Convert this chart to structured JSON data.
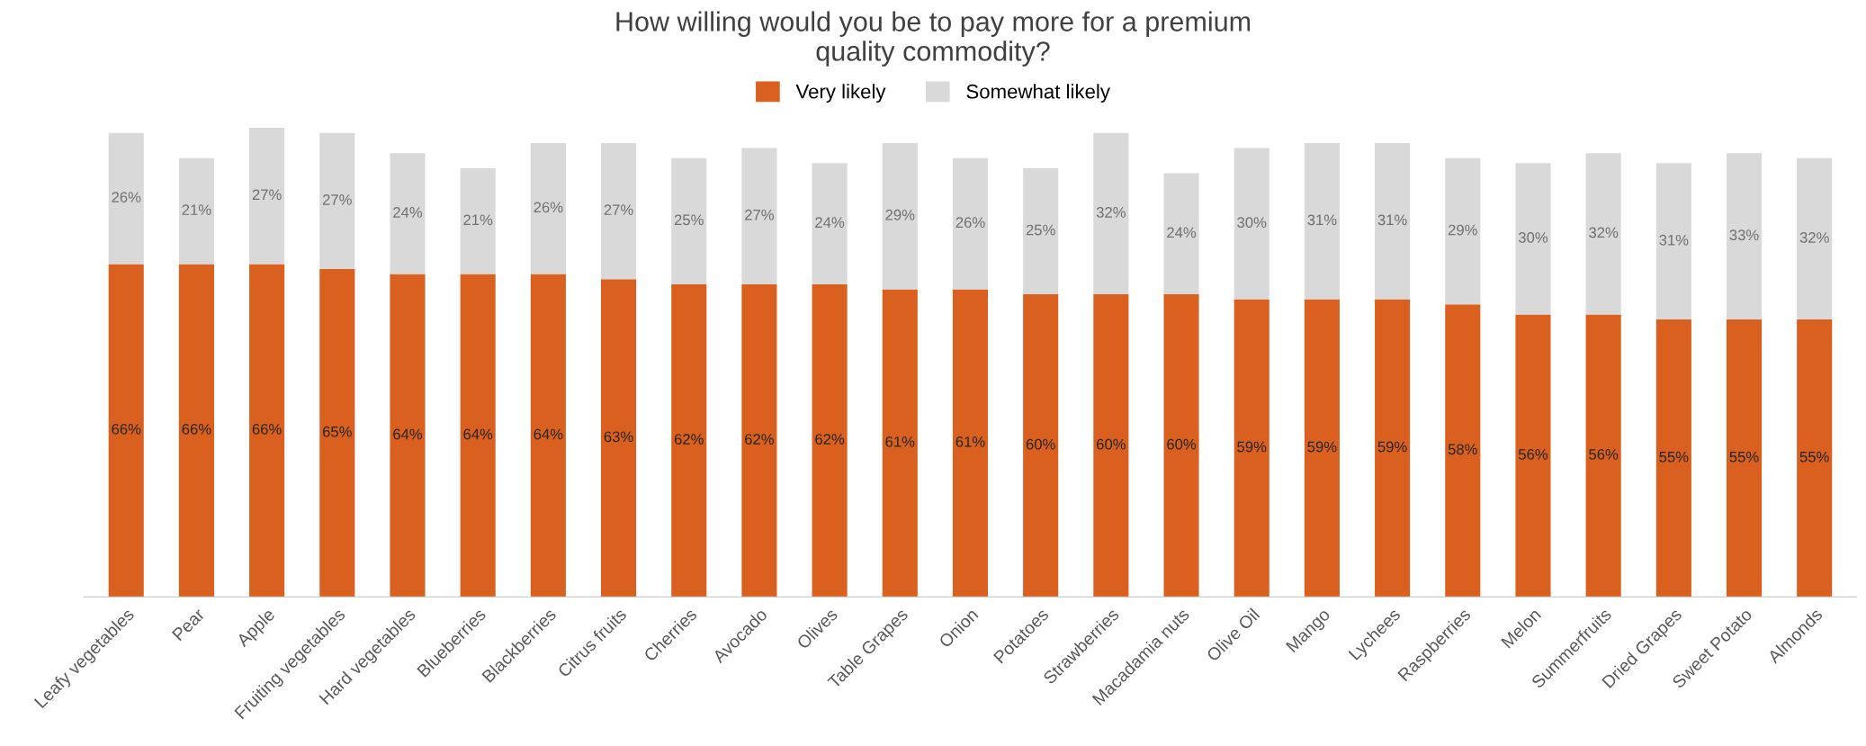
{
  "chart_data": {
    "type": "bar",
    "title": "How willing would you be to pay more for a premium\nquality commodity?",
    "categories": [
      "Leafy vegetables",
      "Pear",
      "Apple",
      "Fruiting vegetables",
      "Hard vegetables",
      "Blueberries",
      "Blackberries",
      "Citrus fruits",
      "Cherries",
      "Avocado",
      "Olives",
      "Table Grapes",
      "Onion",
      "Potatoes",
      "Strawberries",
      "Macadamia nuts",
      "Olive Oil",
      "Mango",
      "Lychees",
      "Raspberries",
      "Melon",
      "Summerfruits",
      "Dried Grapes",
      "Sweet Potato",
      "Almonds"
    ],
    "series": [
      {
        "name": "Very likely",
        "color": "#d9601f",
        "values": [
          66,
          66,
          66,
          65,
          64,
          64,
          64,
          63,
          62,
          62,
          62,
          61,
          61,
          60,
          60,
          60,
          59,
          59,
          59,
          58,
          56,
          56,
          55,
          55,
          55
        ],
        "value_labels": [
          "66%",
          "66%",
          "66%",
          "65%",
          "64%",
          "64%",
          "64%",
          "63%",
          "62%",
          "62%",
          "62%",
          "61%",
          "61%",
          "60%",
          "60%",
          "60%",
          "59%",
          "59%",
          "59%",
          "58%",
          "56%",
          "56%",
          "55%",
          "55%",
          "55%"
        ]
      },
      {
        "name": "Somewhat likely",
        "color": "#d9d9d9",
        "values": [
          26,
          21,
          27,
          27,
          24,
          21,
          26,
          27,
          25,
          27,
          24,
          29,
          26,
          25,
          32,
          24,
          30,
          31,
          31,
          29,
          30,
          32,
          31,
          33,
          32
        ],
        "value_labels": [
          "26%",
          "21%",
          "27%",
          "27%",
          "24%",
          "21%",
          "26%",
          "27%",
          "25%",
          "27%",
          "24%",
          "29%",
          "26%",
          "25%",
          "32%",
          "24%",
          "30%",
          "31%",
          "31%",
          "29%",
          "30%",
          "32%",
          "31%",
          "33%",
          "32%"
        ]
      }
    ],
    "stacked": true,
    "legend": "top",
    "grid": false,
    "tick_labels": "x"
  }
}
